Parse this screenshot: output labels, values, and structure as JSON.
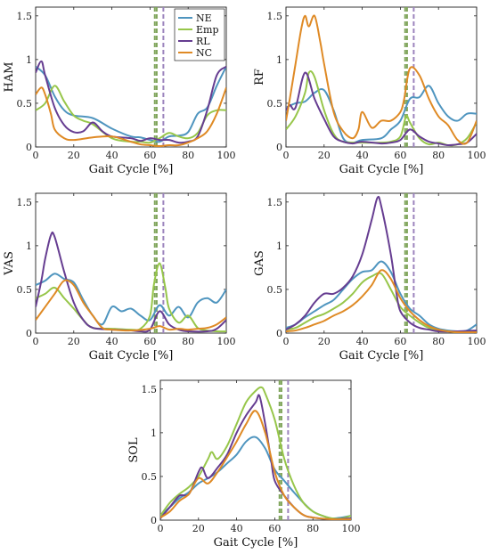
{
  "colors": {
    "NE": "#4F95BF",
    "Emp": "#97C64A",
    "RL": "#663D91",
    "NC": "#DF8A25",
    "vline_green": "#7FA45A",
    "vline_purple": "#9C84BD"
  },
  "chart_data": [
    {
      "type": "line",
      "ylabel": "HAM",
      "xlabel": "Gait Cycle [%]",
      "xlim": [
        0,
        100
      ],
      "ylim": [
        0,
        1.6
      ],
      "xticks": [
        "0",
        "20",
        "40",
        "60",
        "80",
        "100"
      ],
      "yticks": [
        "0",
        "0.5",
        "1",
        "1.5"
      ],
      "grid": false,
      "legend": {
        "position": "top-right",
        "entries": [
          "NE",
          "Emp",
          "RL",
          "NC"
        ]
      },
      "vlines": [
        {
          "x": 62.5,
          "color": "green"
        },
        {
          "x": 63.5,
          "color": "green"
        },
        {
          "x": 67,
          "color": "purple"
        }
      ],
      "series": [
        {
          "name": "NE",
          "x": [
            0,
            5,
            10,
            15,
            20,
            30,
            40,
            50,
            55,
            60,
            65,
            70,
            75,
            80,
            85,
            90,
            95,
            100
          ],
          "y": [
            0.92,
            0.82,
            0.58,
            0.42,
            0.36,
            0.33,
            0.21,
            0.12,
            0.11,
            0.08,
            0.06,
            0.12,
            0.13,
            0.17,
            0.38,
            0.45,
            0.7,
            0.92
          ]
        },
        {
          "name": "Emp",
          "x": [
            0,
            5,
            10,
            15,
            20,
            25,
            30,
            40,
            50,
            55,
            60,
            65,
            70,
            75,
            80,
            85,
            90,
            95,
            100
          ],
          "y": [
            0.42,
            0.5,
            0.7,
            0.52,
            0.36,
            0.3,
            0.26,
            0.1,
            0.06,
            0.06,
            0.05,
            0.1,
            0.16,
            0.12,
            0.1,
            0.16,
            0.36,
            0.42,
            0.42
          ]
        },
        {
          "name": "RL",
          "x": [
            0,
            3,
            5,
            10,
            15,
            20,
            25,
            30,
            35,
            40,
            50,
            55,
            60,
            65,
            70,
            75,
            80,
            85,
            90,
            95,
            100
          ],
          "y": [
            0.85,
            0.98,
            0.82,
            0.45,
            0.25,
            0.17,
            0.18,
            0.28,
            0.18,
            0.12,
            0.1,
            0.07,
            0.1,
            0.08,
            0.08,
            0.05,
            0.06,
            0.12,
            0.42,
            0.82,
            0.92
          ]
        },
        {
          "name": "NC",
          "x": [
            0,
            3,
            5,
            8,
            10,
            15,
            20,
            30,
            40,
            50,
            55,
            60,
            65,
            70,
            75,
            80,
            85,
            90,
            95,
            100
          ],
          "y": [
            0.6,
            0.68,
            0.6,
            0.38,
            0.2,
            0.1,
            0.08,
            0.11,
            0.12,
            0.06,
            0.03,
            0.02,
            0.01,
            0.02,
            0.02,
            0.05,
            0.1,
            0.18,
            0.38,
            0.68
          ]
        }
      ]
    },
    {
      "type": "line",
      "ylabel": "RF",
      "xlabel": "Gait Cycle [%]",
      "xlim": [
        0,
        100
      ],
      "ylim": [
        0,
        1.6
      ],
      "xticks": [
        "0",
        "20",
        "40",
        "60",
        "80",
        "100"
      ],
      "yticks": [
        "0",
        "0.5",
        "1",
        "1.5"
      ],
      "grid": false,
      "vlines": [
        {
          "x": 62.5,
          "color": "green"
        },
        {
          "x": 63.5,
          "color": "green"
        },
        {
          "x": 67,
          "color": "purple"
        }
      ],
      "series": [
        {
          "name": "NE",
          "x": [
            0,
            5,
            10,
            15,
            20,
            25,
            30,
            35,
            40,
            50,
            55,
            60,
            65,
            70,
            75,
            80,
            85,
            90,
            95,
            100
          ],
          "y": [
            0.45,
            0.5,
            0.52,
            0.62,
            0.65,
            0.42,
            0.1,
            0.05,
            0.08,
            0.1,
            0.2,
            0.3,
            0.55,
            0.57,
            0.7,
            0.5,
            0.35,
            0.3,
            0.38,
            0.38
          ]
        },
        {
          "name": "Emp",
          "x": [
            0,
            5,
            10,
            12,
            15,
            20,
            25,
            30,
            40,
            50,
            55,
            60,
            63,
            65,
            70,
            75,
            80,
            85,
            90,
            95,
            100
          ],
          "y": [
            0.2,
            0.35,
            0.62,
            0.85,
            0.8,
            0.42,
            0.15,
            0.06,
            0.05,
            0.05,
            0.06,
            0.12,
            0.35,
            0.28,
            0.1,
            0.03,
            0.05,
            0.02,
            0.03,
            0.1,
            0.28
          ]
        },
        {
          "name": "RL",
          "x": [
            0,
            2,
            5,
            10,
            15,
            20,
            25,
            30,
            35,
            40,
            50,
            55,
            60,
            65,
            70,
            75,
            80,
            85,
            90,
            95,
            100
          ],
          "y": [
            0.42,
            0.48,
            0.45,
            0.85,
            0.55,
            0.32,
            0.12,
            0.06,
            0.04,
            0.06,
            0.04,
            0.05,
            0.08,
            0.2,
            0.12,
            0.06,
            0.04,
            0.02,
            0.03,
            0.05,
            0.15
          ]
        },
        {
          "name": "NC",
          "x": [
            0,
            2,
            5,
            8,
            10,
            12,
            15,
            18,
            20,
            25,
            30,
            35,
            38,
            40,
            45,
            50,
            55,
            60,
            62,
            65,
            70,
            75,
            80,
            85,
            90,
            95,
            100
          ],
          "y": [
            0.3,
            0.55,
            0.95,
            1.35,
            1.5,
            1.38,
            1.5,
            1.2,
            0.95,
            0.4,
            0.18,
            0.1,
            0.2,
            0.4,
            0.22,
            0.3,
            0.3,
            0.4,
            0.55,
            0.9,
            0.82,
            0.55,
            0.35,
            0.25,
            0.08,
            0.05,
            0.3
          ]
        }
      ]
    },
    {
      "type": "line",
      "ylabel": "VAS",
      "xlabel": "Gait Cycle [%]",
      "xlim": [
        0,
        100
      ],
      "ylim": [
        0,
        1.6
      ],
      "xticks": [
        "0",
        "20",
        "40",
        "60",
        "80",
        "100"
      ],
      "yticks": [
        "0",
        "0.5",
        "1",
        "1.5"
      ],
      "grid": false,
      "vlines": [
        {
          "x": 62.5,
          "color": "green"
        },
        {
          "x": 63.5,
          "color": "green"
        },
        {
          "x": 67,
          "color": "purple"
        }
      ],
      "series": [
        {
          "name": "NE",
          "x": [
            0,
            5,
            10,
            15,
            20,
            25,
            30,
            35,
            40,
            45,
            50,
            55,
            60,
            65,
            70,
            75,
            80,
            85,
            90,
            95,
            100
          ],
          "y": [
            0.55,
            0.6,
            0.68,
            0.62,
            0.58,
            0.38,
            0.2,
            0.1,
            0.3,
            0.25,
            0.28,
            0.2,
            0.15,
            0.32,
            0.2,
            0.3,
            0.18,
            0.35,
            0.4,
            0.35,
            0.5
          ]
        },
        {
          "name": "Emp",
          "x": [
            0,
            5,
            10,
            15,
            20,
            25,
            30,
            40,
            50,
            55,
            60,
            62,
            65,
            68,
            70,
            75,
            80,
            85,
            90,
            95,
            100
          ],
          "y": [
            0.4,
            0.45,
            0.52,
            0.4,
            0.28,
            0.15,
            0.06,
            0.05,
            0.04,
            0.05,
            0.2,
            0.55,
            0.8,
            0.52,
            0.28,
            0.12,
            0.2,
            0.06,
            0.03,
            0.02,
            0.02
          ]
        },
        {
          "name": "RL",
          "x": [
            0,
            3,
            5,
            8,
            10,
            15,
            20,
            25,
            30,
            40,
            50,
            55,
            60,
            65,
            70,
            75,
            80,
            90,
            95,
            100
          ],
          "y": [
            0.3,
            0.6,
            0.85,
            1.12,
            1.1,
            0.7,
            0.35,
            0.15,
            0.06,
            0.04,
            0.03,
            0.02,
            0.04,
            0.25,
            0.1,
            0.04,
            0.02,
            0.02,
            0.05,
            0.15
          ]
        },
        {
          "name": "NC",
          "x": [
            0,
            5,
            10,
            15,
            20,
            25,
            30,
            35,
            40,
            50,
            60,
            65,
            70,
            75,
            80,
            85,
            90,
            95,
            100
          ],
          "y": [
            0.15,
            0.3,
            0.45,
            0.6,
            0.55,
            0.35,
            0.2,
            0.06,
            0.04,
            0.03,
            0.05,
            0.08,
            0.04,
            0.05,
            0.04,
            0.05,
            0.06,
            0.1,
            0.18
          ]
        }
      ]
    },
    {
      "type": "line",
      "ylabel": "GAS",
      "xlabel": "Gait Cycle [%]",
      "xlim": [
        0,
        100
      ],
      "ylim": [
        0,
        1.6
      ],
      "xticks": [
        "0",
        "20",
        "40",
        "60",
        "80",
        "100"
      ],
      "yticks": [
        "0",
        "0.5",
        "1",
        "1.5"
      ],
      "grid": false,
      "vlines": [
        {
          "x": 62.5,
          "color": "green"
        },
        {
          "x": 63.5,
          "color": "green"
        },
        {
          "x": 67,
          "color": "purple"
        }
      ],
      "series": [
        {
          "name": "NE",
          "x": [
            0,
            5,
            10,
            15,
            20,
            25,
            30,
            35,
            40,
            45,
            50,
            55,
            60,
            65,
            70,
            75,
            80,
            85,
            90,
            95,
            100
          ],
          "y": [
            0.06,
            0.1,
            0.18,
            0.25,
            0.32,
            0.38,
            0.5,
            0.62,
            0.7,
            0.72,
            0.82,
            0.7,
            0.45,
            0.28,
            0.2,
            0.1,
            0.05,
            0.03,
            0.02,
            0.03,
            0.1
          ]
        },
        {
          "name": "Emp",
          "x": [
            0,
            5,
            10,
            15,
            20,
            25,
            30,
            35,
            40,
            45,
            50,
            55,
            60,
            65,
            70,
            75,
            80,
            85,
            90,
            100
          ],
          "y": [
            0.04,
            0.06,
            0.12,
            0.18,
            0.22,
            0.28,
            0.35,
            0.45,
            0.58,
            0.65,
            0.68,
            0.5,
            0.3,
            0.2,
            0.12,
            0.06,
            0.03,
            0.02,
            0.01,
            0.02
          ]
        },
        {
          "name": "RL",
          "x": [
            0,
            5,
            10,
            15,
            20,
            25,
            30,
            35,
            40,
            45,
            48,
            50,
            55,
            58,
            60,
            65,
            70,
            75,
            80,
            90,
            100
          ],
          "y": [
            0.04,
            0.1,
            0.2,
            0.35,
            0.45,
            0.45,
            0.52,
            0.65,
            0.9,
            1.3,
            1.55,
            1.45,
            0.9,
            0.45,
            0.25,
            0.12,
            0.06,
            0.04,
            0.02,
            0.02,
            0.03
          ]
        },
        {
          "name": "NC",
          "x": [
            0,
            5,
            10,
            15,
            20,
            25,
            30,
            35,
            40,
            45,
            50,
            55,
            60,
            65,
            70,
            75,
            80,
            85,
            90,
            100
          ],
          "y": [
            0.02,
            0.03,
            0.06,
            0.1,
            0.14,
            0.2,
            0.25,
            0.32,
            0.42,
            0.55,
            0.72,
            0.62,
            0.4,
            0.25,
            0.15,
            0.08,
            0.04,
            0.02,
            0.01,
            0.01
          ]
        }
      ]
    },
    {
      "type": "line",
      "ylabel": "SOL",
      "xlabel": "Gait Cycle [%]",
      "xlim": [
        0,
        100
      ],
      "ylim": [
        0,
        1.6
      ],
      "xticks": [
        "0",
        "20",
        "40",
        "60",
        "80",
        "100"
      ],
      "yticks": [
        "0",
        "0.5",
        "1",
        "1.5"
      ],
      "grid": false,
      "vlines": [
        {
          "x": 62.5,
          "color": "green"
        },
        {
          "x": 63.5,
          "color": "green"
        },
        {
          "x": 67,
          "color": "purple"
        }
      ],
      "series": [
        {
          "name": "NE",
          "x": [
            0,
            5,
            10,
            15,
            20,
            25,
            30,
            35,
            40,
            45,
            50,
            55,
            60,
            65,
            70,
            75,
            80,
            85,
            90,
            95,
            100
          ],
          "y": [
            0.05,
            0.15,
            0.25,
            0.32,
            0.42,
            0.48,
            0.55,
            0.65,
            0.75,
            0.9,
            0.95,
            0.82,
            0.58,
            0.45,
            0.32,
            0.2,
            0.1,
            0.05,
            0.02,
            0.03,
            0.05
          ]
        },
        {
          "name": "Emp",
          "x": [
            0,
            5,
            10,
            15,
            20,
            25,
            27,
            30,
            35,
            40,
            45,
            50,
            53,
            55,
            60,
            65,
            70,
            75,
            80,
            85,
            90,
            95,
            100
          ],
          "y": [
            0.05,
            0.2,
            0.3,
            0.38,
            0.5,
            0.7,
            0.78,
            0.7,
            0.85,
            1.1,
            1.35,
            1.48,
            1.52,
            1.45,
            1.15,
            0.7,
            0.4,
            0.2,
            0.1,
            0.05,
            0.02,
            0.02,
            0.05
          ]
        },
        {
          "name": "RL",
          "x": [
            0,
            5,
            10,
            15,
            20,
            22,
            25,
            30,
            35,
            40,
            45,
            50,
            52,
            55,
            58,
            60,
            65,
            70,
            75,
            80,
            90,
            100
          ],
          "y": [
            0.02,
            0.15,
            0.28,
            0.3,
            0.55,
            0.6,
            0.48,
            0.6,
            0.75,
            1.0,
            1.2,
            1.35,
            1.42,
            1.1,
            0.7,
            0.45,
            0.28,
            0.15,
            0.06,
            0.03,
            0.01,
            0.02
          ]
        },
        {
          "name": "NC",
          "x": [
            0,
            5,
            10,
            15,
            20,
            25,
            30,
            35,
            40,
            45,
            50,
            55,
            60,
            65,
            70,
            75,
            80,
            90,
            100
          ],
          "y": [
            0.03,
            0.1,
            0.22,
            0.3,
            0.48,
            0.42,
            0.55,
            0.72,
            0.9,
            1.1,
            1.25,
            1.0,
            0.55,
            0.28,
            0.15,
            0.06,
            0.03,
            0.01,
            0.01
          ]
        }
      ]
    }
  ]
}
